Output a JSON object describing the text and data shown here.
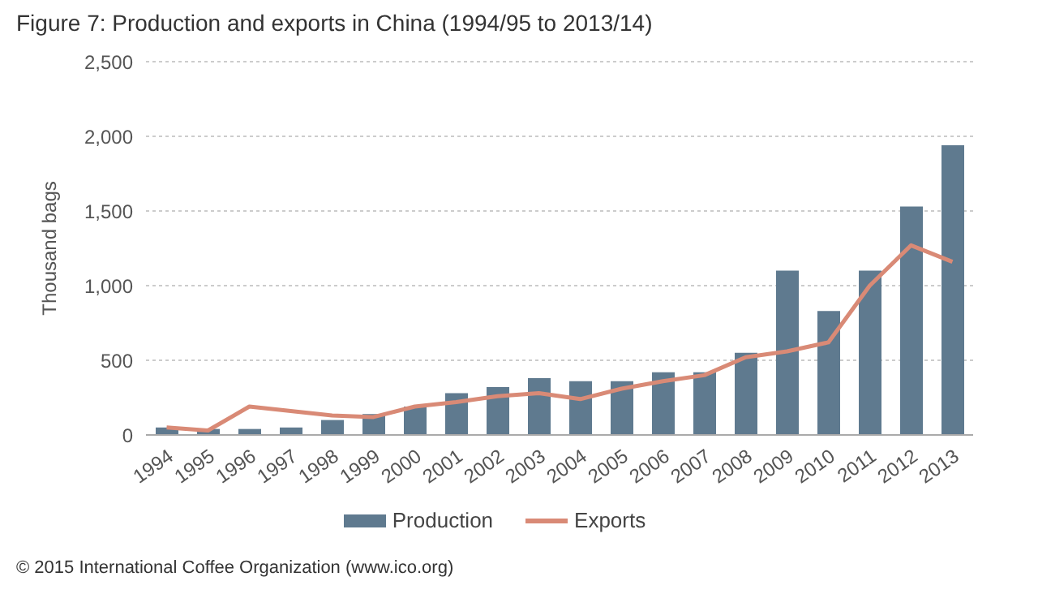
{
  "chart_data": {
    "type": "bar",
    "title": "Figure 7: Production and exports in China (1994/95 to 2013/14)",
    "ylabel": "Thousand bags",
    "categories": [
      "1994",
      "1995",
      "1996",
      "1997",
      "1998",
      "1999",
      "2000",
      "2001",
      "2002",
      "2003",
      "2004",
      "2005",
      "2006",
      "2007",
      "2008",
      "2009",
      "2010",
      "2011",
      "2012",
      "2013"
    ],
    "series": [
      {
        "name": "Production",
        "color": "#5f7a8f",
        "values": [
          50,
          40,
          40,
          50,
          100,
          140,
          190,
          280,
          320,
          380,
          360,
          360,
          420,
          420,
          550,
          1100,
          830,
          1100,
          1530,
          1940
        ]
      },
      {
        "name": "Exports",
        "type": "line",
        "color": "#d98a76",
        "values": [
          50,
          30,
          190,
          160,
          130,
          120,
          190,
          220,
          260,
          280,
          240,
          310,
          360,
          400,
          520,
          560,
          620,
          1000,
          1270,
          1160
        ]
      }
    ],
    "ylim": [
      0,
      2500
    ],
    "yticks": [
      {
        "value": 0,
        "label": "0"
      },
      {
        "value": 500,
        "label": "500"
      },
      {
        "value": 1000,
        "label": "1,000"
      },
      {
        "value": 1500,
        "label": "1,500"
      },
      {
        "value": 2000,
        "label": "2,000"
      },
      {
        "value": 2500,
        "label": "2,500"
      }
    ],
    "grid": "y",
    "legend": "bottom",
    "marker": "none",
    "annotations": [
      "© 2015 International Coffee Organization (www.ico.org)"
    ]
  }
}
